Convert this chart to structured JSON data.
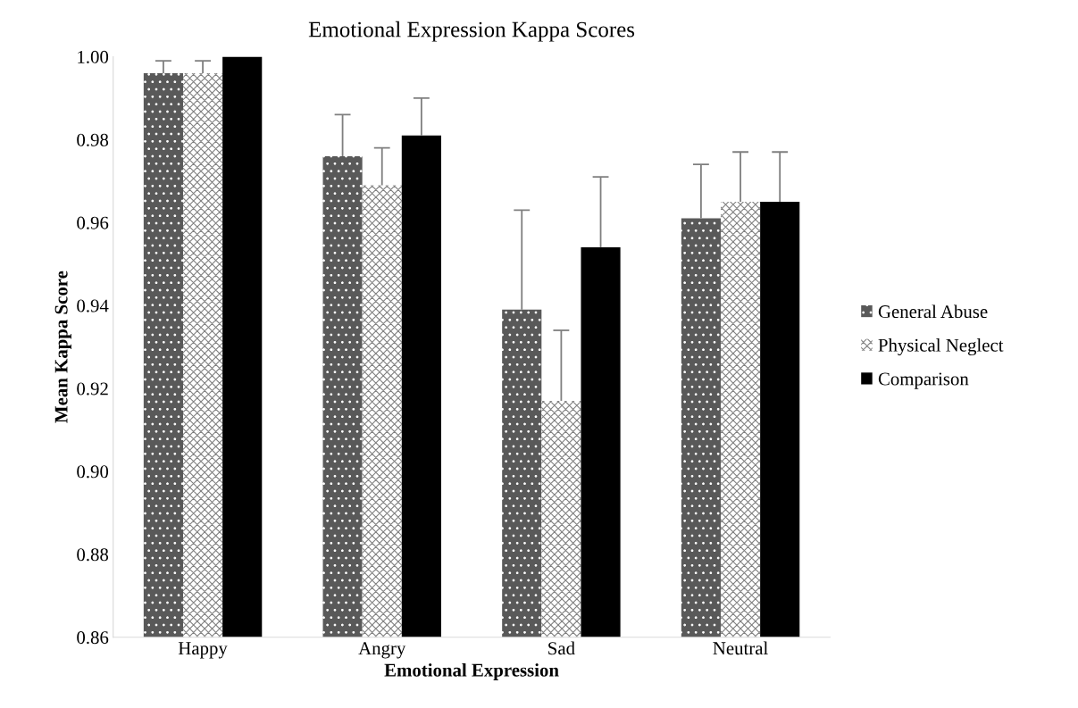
{
  "chart_data": {
    "type": "bar",
    "title": "Emotional Expression Kappa Scores",
    "xlabel": "Emotional Expression",
    "ylabel": "Mean Kappa Score",
    "categories": [
      "Happy",
      "Angry",
      "Sad",
      "Neutral"
    ],
    "series": [
      {
        "name": "General Abuse",
        "color": "#595959",
        "values": [
          0.996,
          0.976,
          0.939,
          0.961
        ],
        "errors": [
          [
            0.996,
            0.999
          ],
          [
            0.976,
            0.986
          ],
          [
            0.939,
            0.963
          ],
          [
            0.961,
            0.974
          ]
        ]
      },
      {
        "name": "Physical Neglect",
        "color": "#808080",
        "values": [
          0.996,
          0.969,
          0.917,
          0.965
        ],
        "errors": [
          [
            0.996,
            0.999
          ],
          [
            0.969,
            0.978
          ],
          [
            0.917,
            0.934
          ],
          [
            0.965,
            0.977
          ]
        ]
      },
      {
        "name": "Comparison",
        "color": "#000000",
        "values": [
          1.0,
          0.981,
          0.954,
          0.965
        ],
        "errors": [
          null,
          [
            0.981,
            0.99
          ],
          [
            0.954,
            0.971
          ],
          [
            0.965,
            0.977
          ]
        ]
      }
    ],
    "ylim": [
      0.86,
      1.0
    ],
    "yticks": [
      {
        "value": 0.86,
        "label": "0.86"
      },
      {
        "value": 0.88,
        "label": "0.88"
      },
      {
        "value": 0.9,
        "label": "0.90"
      },
      {
        "value": 0.92,
        "label": "0.92"
      },
      {
        "value": 0.94,
        "label": "0.94"
      },
      {
        "value": 0.96,
        "label": "0.96"
      },
      {
        "value": 0.98,
        "label": "0.98"
      },
      {
        "value": 1.0,
        "label": "1.00"
      }
    ],
    "grid": false,
    "legend": "right"
  }
}
